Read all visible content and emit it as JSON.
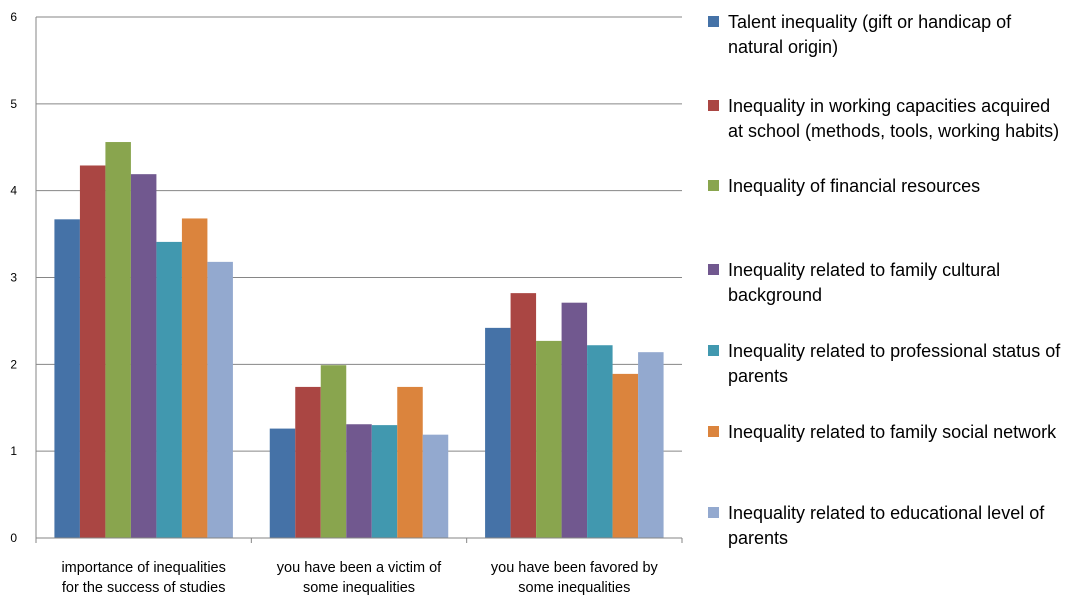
{
  "chart_data": {
    "type": "bar",
    "categories": [
      [
        "importance of inequalities",
        "for the success of studies"
      ],
      [
        "you have been a victim of",
        "some inequalities"
      ],
      [
        "you have been favored by",
        "some inequalities"
      ]
    ],
    "ylim": [
      0,
      6
    ],
    "yticks": [
      "0",
      "1",
      "2",
      "3",
      "4",
      "5",
      "6"
    ],
    "grid": true,
    "legend_position": "right",
    "series": [
      {
        "name": "Talent inequality (gift or handicap of natural origin)",
        "color": "#4572A7",
        "values": [
          3.67,
          1.26,
          2.42
        ]
      },
      {
        "name": "Inequality in working capacities acquired at school (methods, tools, working habits)",
        "color": "#AA4643",
        "values": [
          4.29,
          1.74,
          2.82
        ]
      },
      {
        "name": "Inequality of financial resources",
        "color": "#89A54E",
        "values": [
          4.56,
          1.99,
          2.27
        ]
      },
      {
        "name": "Inequality related to family cultural background",
        "color": "#71588F",
        "values": [
          4.19,
          1.31,
          2.71
        ]
      },
      {
        "name": "Inequality related to professional status of parents",
        "color": "#4198AF",
        "values": [
          3.41,
          1.3,
          2.22
        ]
      },
      {
        "name": "Inequality related to family social network",
        "color": "#DB843D",
        "values": [
          3.68,
          1.74,
          1.89
        ]
      },
      {
        "name": "Inequality related to educational level of parents",
        "color": "#93A9CF",
        "values": [
          3.18,
          1.19,
          2.14
        ]
      }
    ]
  }
}
